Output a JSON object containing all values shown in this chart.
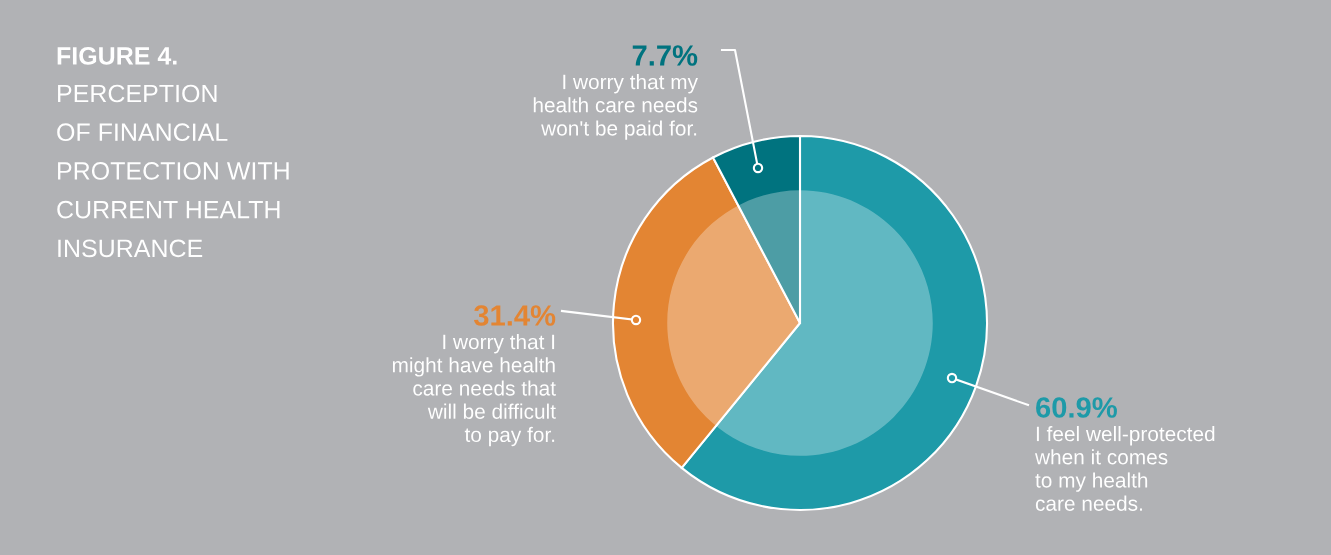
{
  "chart_data": {
    "type": "donut",
    "title": "FIGURE 4.",
    "subtitle": "PERCEPTION\nOF FINANCIAL\nPROTECTION WITH\nCURRENT HEALTH\nINSURANCE",
    "categories": [
      "I feel well-protected\nwhen it comes\nto my health\ncare needs.",
      "I worry that I\nmight have health\ncare needs that\nwill be difficult\nto pay for.",
      "I worry that my\nhealth care needs\nwon't be paid for."
    ],
    "values": [
      60.9,
      31.4,
      7.7
    ],
    "value_labels": [
      "60.9%",
      "31.4%",
      "7.7%"
    ],
    "colors": [
      "#1e9aa8",
      "#e38533",
      "#00737f"
    ]
  }
}
